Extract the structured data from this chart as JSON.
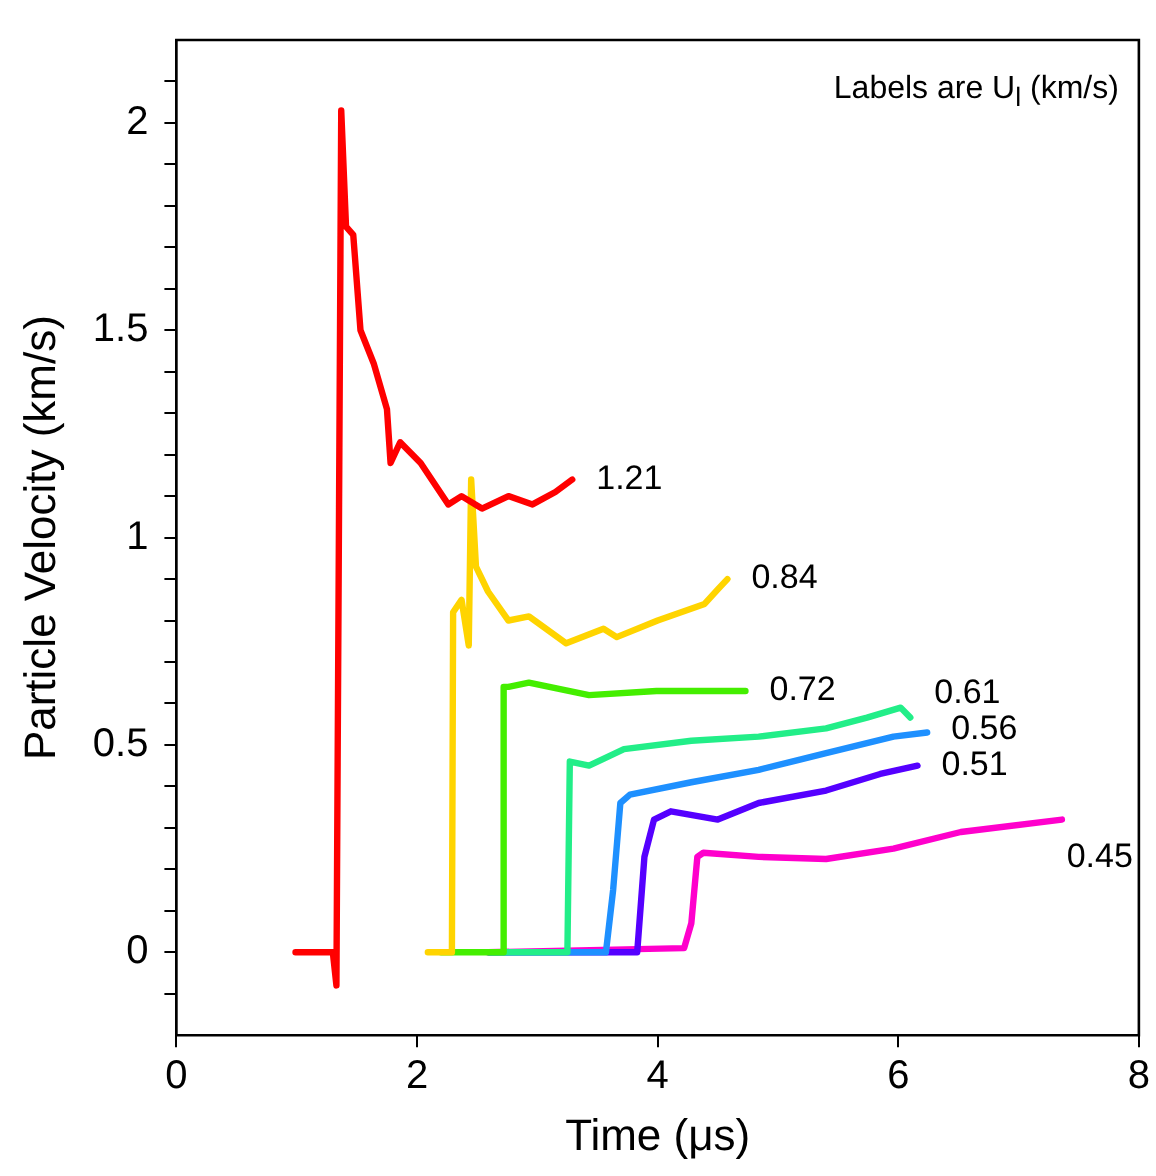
{
  "chart_data": {
    "type": "line",
    "xlabel": "Time (μs)",
    "ylabel": "Particle Velocity (km/s)",
    "xlim": [
      0,
      8
    ],
    "xticks": [
      0,
      2,
      4,
      6,
      8
    ],
    "ylim": [
      -0.2,
      2.2
    ],
    "yticks": [
      {
        "value": -0.1,
        "label": null
      },
      0,
      {
        "value": 0.1,
        "label": null
      },
      {
        "value": 0.2,
        "label": null
      },
      {
        "value": 0.3,
        "label": null
      },
      {
        "value": 0.4,
        "label": null
      },
      0.5,
      {
        "value": 0.6,
        "label": null
      },
      {
        "value": 0.7,
        "label": null
      },
      {
        "value": 0.8,
        "label": null
      },
      {
        "value": 0.9,
        "label": null
      },
      1,
      {
        "value": 1.1,
        "label": null
      },
      {
        "value": 1.2,
        "label": null
      },
      {
        "value": 1.3,
        "label": null
      },
      {
        "value": 1.4,
        "label": null
      },
      1.5,
      {
        "value": 1.6,
        "label": null
      },
      {
        "value": 1.7,
        "label": null
      },
      {
        "value": 1.8,
        "label": null
      },
      {
        "value": 1.9,
        "label": null
      },
      2,
      {
        "value": 2.1,
        "label": null
      }
    ],
    "grid": false,
    "legend": false,
    "marker": "none",
    "line_style": "solid",
    "series": [
      {
        "name": "1.21",
        "color": "#ff0000",
        "x": [
          0.99,
          1.3,
          1.33,
          1.37,
          1.41,
          1.47,
          1.53,
          1.64,
          1.75,
          1.78,
          1.86,
          2.03,
          2.26,
          2.37,
          2.54,
          2.76,
          2.96,
          3.15,
          3.29
        ],
        "values": [
          0,
          0,
          -0.08,
          2.03,
          1.75,
          1.73,
          1.5,
          1.42,
          1.31,
          1.18,
          1.23,
          1.18,
          1.08,
          1.1,
          1.07,
          1.1,
          1.08,
          1.11,
          1.14
        ]
      },
      {
        "name": "0.84",
        "color": "#ffd400",
        "x": [
          2.09,
          2.29,
          2.3,
          2.37,
          2.43,
          2.45,
          2.49,
          2.59,
          2.76,
          2.93,
          3.24,
          3.55,
          3.66,
          4.0,
          4.39,
          4.5,
          4.58
        ],
        "values": [
          0,
          0,
          0.82,
          0.85,
          0.74,
          1.14,
          0.93,
          0.87,
          0.8,
          0.81,
          0.745,
          0.78,
          0.76,
          0.8,
          0.84,
          0.875,
          0.9
        ]
      },
      {
        "name": "0.72",
        "color": "#44ee00",
        "x": [
          2.2,
          2.71,
          2.72,
          2.76,
          2.93,
          3.43,
          3.99,
          4.73
        ],
        "values": [
          0,
          0,
          0.64,
          0.64,
          0.65,
          0.62,
          0.63,
          0.63
        ]
      },
      {
        "name": "0.61",
        "color": "#22ee88",
        "x": [
          2.6,
          3.25,
          3.27,
          3.43,
          3.72,
          4.28,
          4.84,
          5.4,
          5.74,
          6.02,
          6.1
        ],
        "values": [
          0,
          0,
          0.46,
          0.45,
          0.49,
          0.51,
          0.52,
          0.54,
          0.566,
          0.59,
          0.566
        ]
      },
      {
        "name": "0.56",
        "color": "#1e90ff",
        "x": [
          2.6,
          3.57,
          3.63,
          3.69,
          3.77,
          4.28,
          4.84,
          5.4,
          5.96,
          6.24
        ],
        "values": [
          0,
          0,
          0.15,
          0.36,
          0.38,
          0.41,
          0.44,
          0.48,
          0.52,
          0.53
        ]
      },
      {
        "name": "0.51",
        "color": "#5500ff",
        "x": [
          2.6,
          3.83,
          3.89,
          3.97,
          4.11,
          4.5,
          4.84,
          5.4,
          5.85,
          6.16
        ],
        "values": [
          0,
          0,
          0.23,
          0.32,
          0.34,
          0.32,
          0.36,
          0.39,
          0.43,
          0.45
        ]
      },
      {
        "name": "0.45",
        "color": "#ff00cc",
        "x": [
          2.59,
          4.22,
          4.28,
          4.33,
          4.38,
          4.84,
          5.4,
          5.96,
          6.52,
          7.36
        ],
        "values": [
          0,
          0.01,
          0.07,
          0.23,
          0.24,
          0.23,
          0.225,
          0.25,
          0.29,
          0.32
        ]
      }
    ],
    "annotations": [
      "Labels are U$_{l}$ (km/s)"
    ]
  }
}
